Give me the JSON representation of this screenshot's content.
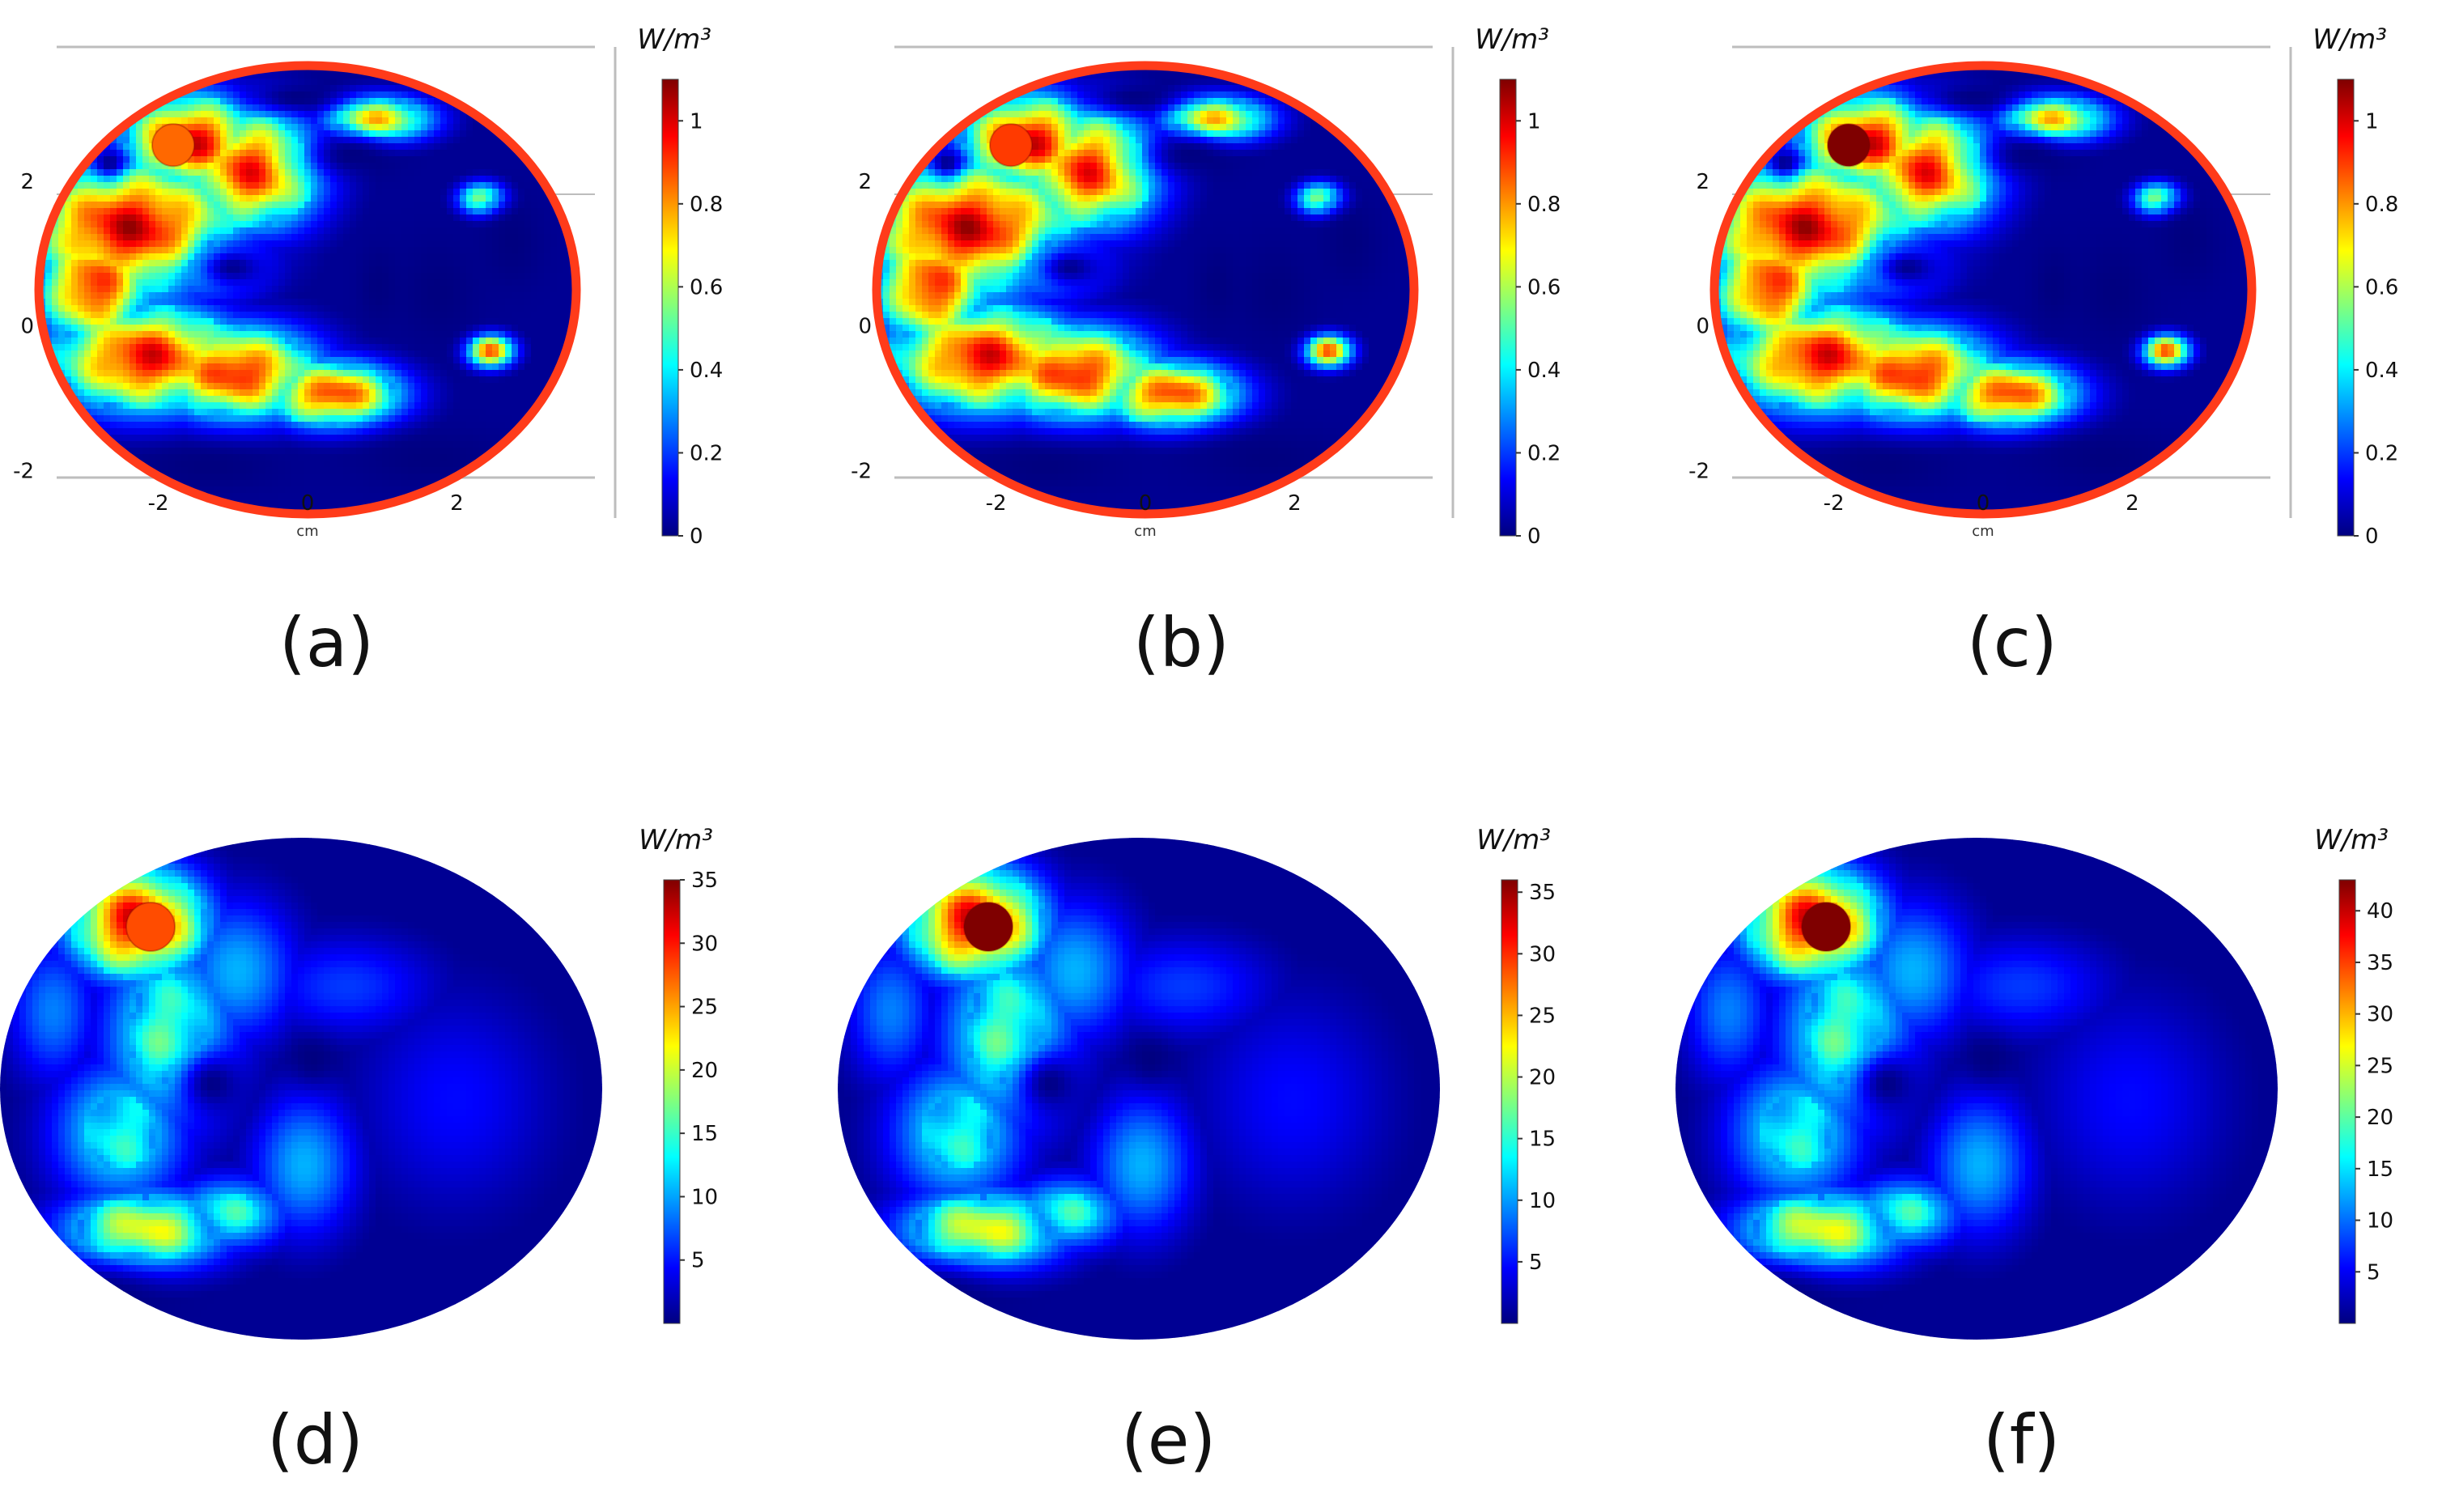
{
  "colors": {
    "jet": [
      "#00007f",
      "#0000ff",
      "#007fff",
      "#00ffff",
      "#7fff7f",
      "#ffff00",
      "#ff7f00",
      "#ff0000",
      "#7f0000"
    ],
    "ring": "#ff3b1a",
    "axis": "#bdbdbd",
    "text": "#111111"
  },
  "chart_data": [
    {
      "type": "heatmap",
      "panel_label": "(a)",
      "xlabel": "cm",
      "x_ticks": [
        "-2",
        "0",
        "2"
      ],
      "y_ticks": [
        "2",
        "0",
        "-2"
      ],
      "xlim": [
        -3.6,
        3.6
      ],
      "ylim": [
        -2.6,
        3.6
      ],
      "colorbar": {
        "unit": "W/m³",
        "min": 0,
        "max": 1.1,
        "ticks": [
          "0",
          "0.2",
          "0.4",
          "0.6",
          "0.8",
          "1"
        ]
      },
      "marker": {
        "x": -1.8,
        "y": 2.5,
        "value": 0.85
      },
      "outer_boundary": true
    },
    {
      "type": "heatmap",
      "panel_label": "(b)",
      "xlabel": "cm",
      "x_ticks": [
        "-2",
        "0",
        "2"
      ],
      "y_ticks": [
        "2",
        "0",
        "-2"
      ],
      "xlim": [
        -3.6,
        3.6
      ],
      "ylim": [
        -2.6,
        3.6
      ],
      "colorbar": {
        "unit": "W/m³",
        "min": 0,
        "max": 1.1,
        "ticks": [
          "0",
          "0.2",
          "0.4",
          "0.6",
          "0.8",
          "1"
        ]
      },
      "marker": {
        "x": -1.8,
        "y": 2.5,
        "value": 0.9
      },
      "outer_boundary": true
    },
    {
      "type": "heatmap",
      "panel_label": "(c)",
      "xlabel": "cm",
      "x_ticks": [
        "-2",
        "0",
        "2"
      ],
      "y_ticks": [
        "2",
        "0",
        "-2"
      ],
      "xlim": [
        -3.6,
        3.6
      ],
      "ylim": [
        -2.6,
        3.6
      ],
      "colorbar": {
        "unit": "W/m³",
        "min": 0,
        "max": 1.1,
        "ticks": [
          "0",
          "0.2",
          "0.4",
          "0.6",
          "0.8",
          "1"
        ]
      },
      "marker": {
        "x": -1.8,
        "y": 2.5,
        "value": 1.1
      },
      "outer_boundary": true
    },
    {
      "type": "heatmap",
      "panel_label": "(d)",
      "colorbar": {
        "unit": "W/m³",
        "min": 0,
        "max": 35,
        "ticks": [
          "5",
          "10",
          "15",
          "20",
          "25",
          "30",
          "35"
        ]
      },
      "marker": {
        "x": -1.8,
        "y": 2.5,
        "value": 28
      },
      "outer_boundary": false
    },
    {
      "type": "heatmap",
      "panel_label": "(e)",
      "colorbar": {
        "unit": "W/m³",
        "min": 0,
        "max": 36,
        "ticks": [
          "5",
          "10",
          "15",
          "20",
          "25",
          "30",
          "35"
        ]
      },
      "marker": {
        "x": -1.8,
        "y": 2.5,
        "value": 36
      },
      "outer_boundary": false
    },
    {
      "type": "heatmap",
      "panel_label": "(f)",
      "colorbar": {
        "unit": "W/m³",
        "min": 0,
        "max": 43,
        "ticks": [
          "5",
          "10",
          "15",
          "20",
          "25",
          "30",
          "35",
          "40"
        ]
      },
      "marker": {
        "x": -1.8,
        "y": 2.5,
        "value": 43
      },
      "outer_boundary": false
    }
  ]
}
